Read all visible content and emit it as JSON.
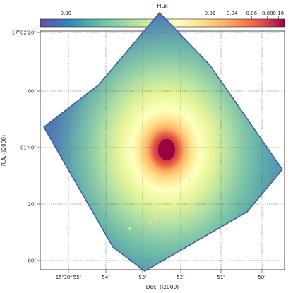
{
  "chart_data": {
    "type": "heatmap",
    "colormap": "Spectral_r",
    "scale": "log",
    "colorbar": {
      "label": "Flux",
      "placement": "top",
      "ticks": [
        "0.00",
        "0.02",
        "0.04",
        "0.06",
        "0.08",
        "0.10"
      ],
      "range": [
        -0.003,
        0.1
      ]
    },
    "xlabel": "Dec. (J2000)",
    "ylabel": "R.A. (J2000)",
    "x_ticks": [
      "15ʰ38ᵐ55ˢ",
      "54ˢ",
      "53ˢ",
      "52ˢ",
      "51ˢ",
      "50ˢ"
    ],
    "y_ticks": [
      "17°02′20″",
      "00″",
      "01′40″",
      "20″",
      "00″"
    ],
    "grid": true,
    "colors": {
      "low": "#5e4fa2",
      "mid": "#ffffbf",
      "high": "#9e0142"
    }
  }
}
